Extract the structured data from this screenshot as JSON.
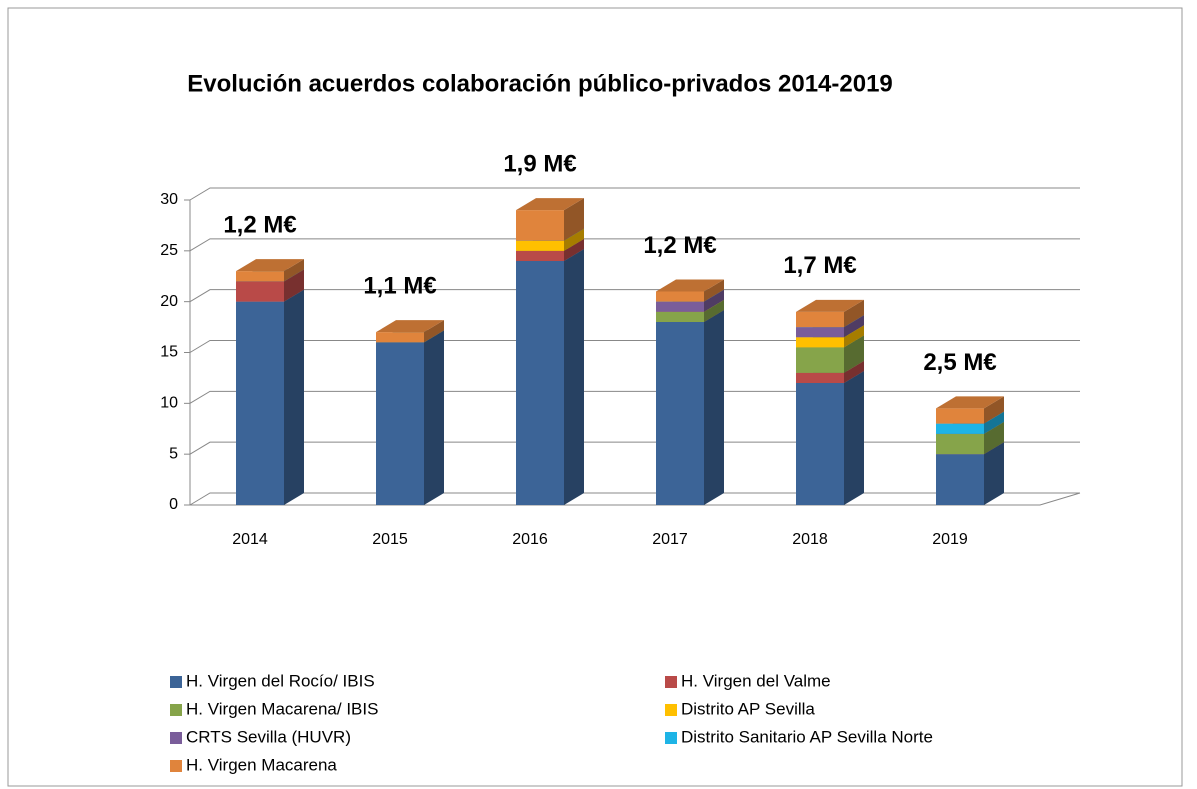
{
  "chart_data": {
    "type": "bar3d_stacked",
    "title": "Evolución acuerdos colaboración público-privados 2014-2019",
    "categories": [
      "2014",
      "2015",
      "2016",
      "2017",
      "2018",
      "2019"
    ],
    "annotations": [
      "1,2 M€",
      "1,1 M€",
      "1,9 M€",
      "1,2 M€",
      "1,7 M€",
      "2,5 M€"
    ],
    "series": [
      {
        "name": "H. Virgen del Rocío/ IBIS",
        "color": "#3c6497",
        "values": [
          20,
          16,
          24,
          18,
          12,
          5
        ]
      },
      {
        "name": "H. Virgen del Valme",
        "color": "#b94a48",
        "values": [
          2,
          0,
          1,
          0,
          1,
          0
        ]
      },
      {
        "name": "H. Virgen Macarena/ IBIS",
        "color": "#86a44a",
        "values": [
          0,
          0,
          0,
          1,
          2.5,
          2
        ]
      },
      {
        "name": "Distrito AP Sevilla",
        "color": "#ffc000",
        "values": [
          0,
          0,
          1,
          0,
          1,
          0
        ]
      },
      {
        "name": "CRTS Sevilla (HUVR)",
        "color": "#7a5d9a",
        "values": [
          0,
          0,
          0,
          1,
          1,
          0
        ]
      },
      {
        "name": "Distrito Sanitario AP Sevilla Norte",
        "color": "#1eb4e6",
        "values": [
          0,
          0,
          0,
          0,
          0,
          1
        ]
      },
      {
        "name": "H. Virgen Macarena",
        "color": "#e0843c",
        "values": [
          1,
          1,
          3,
          1,
          1.5,
          1.5
        ]
      }
    ],
    "ylim": [
      0,
      30
    ],
    "yticks": [
      0,
      5,
      10,
      15,
      20,
      25,
      30
    ],
    "grid": true
  }
}
